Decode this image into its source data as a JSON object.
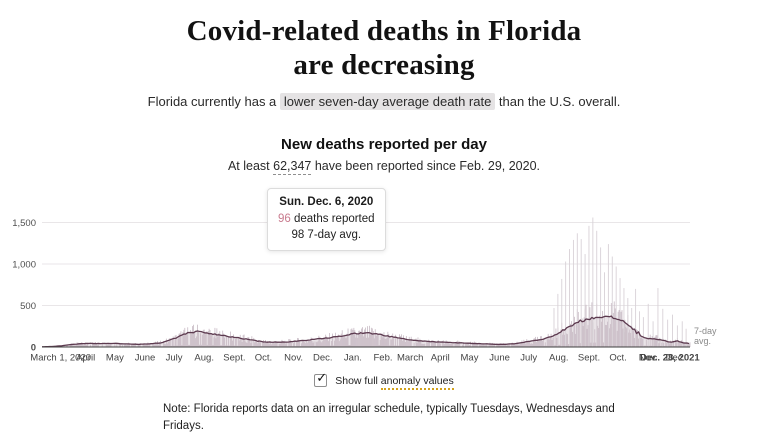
{
  "header": {
    "title_line1": "Covid-related deaths in Florida",
    "title_line2": "are decreasing",
    "subtitle_prefix": "Florida currently has a ",
    "subtitle_highlight": "lower seven-day average death rate",
    "subtitle_suffix": " than the U.S. overall."
  },
  "chart_header": {
    "title": "New deaths reported per day",
    "stat_prefix": "At least ",
    "stat_value": "62,347",
    "stat_suffix": " have been reported since Feb. 29, 2020."
  },
  "tooltip": {
    "date": "Sun. Dec. 6, 2020",
    "deaths_value": "96",
    "deaths_suffix": " deaths reported",
    "avg_text": "98 7-day avg.",
    "accent_color": "#c97b8e"
  },
  "controls": {
    "label_prefix": "Show full ",
    "label_underlined": "anomaly values",
    "checked": true,
    "check_glyph": "✓"
  },
  "note_text": "Note: Florida reports data on an irregular schedule, typically Tuesdays, Wednesdays and Fridays.",
  "chart_data": {
    "type": "bar",
    "title": "New deaths reported per day",
    "x_range": [
      "March 1, 2020",
      "Dec. 28, 2021"
    ],
    "ylim": [
      0,
      1650
    ],
    "grid": true,
    "y_ticks": [
      {
        "v": 0,
        "label": "0",
        "bold": true
      },
      {
        "v": 500,
        "label": "500",
        "bold": false
      },
      {
        "v": 1000,
        "label": "1,000",
        "bold": false
      },
      {
        "v": 1500,
        "label": "1,500",
        "bold": false
      }
    ],
    "x_labels": [
      {
        "label": "March 1, 2020",
        "d": -12,
        "anchor": "start",
        "bold": false
      },
      {
        "label": "April",
        "d": 45
      },
      {
        "label": "May",
        "d": 75
      },
      {
        "label": "June",
        "d": 106
      },
      {
        "label": "July",
        "d": 136
      },
      {
        "label": "Aug.",
        "d": 167
      },
      {
        "label": "Sept.",
        "d": 198
      },
      {
        "label": "Oct.",
        "d": 228
      },
      {
        "label": "Nov.",
        "d": 259
      },
      {
        "label": "Dec.",
        "d": 289
      },
      {
        "label": "Jan.",
        "d": 320
      },
      {
        "label": "Feb.",
        "d": 351
      },
      {
        "label": "March",
        "d": 379
      },
      {
        "label": "April",
        "d": 410
      },
      {
        "label": "May",
        "d": 440
      },
      {
        "label": "June",
        "d": 471
      },
      {
        "label": "July",
        "d": 501
      },
      {
        "label": "Aug.",
        "d": 532
      },
      {
        "label": "Sept.",
        "d": 563
      },
      {
        "label": "Oct.",
        "d": 593
      },
      {
        "label": "Nov.",
        "d": 624
      },
      {
        "label": "Dec.",
        "d": 652
      },
      {
        "label": "Dec. 28, 2021",
        "d": 677,
        "anchor": "end",
        "bold": true
      }
    ],
    "line_label_lines": [
      "7-day",
      "avg."
    ],
    "avg_series": {
      "name": "7-day average deaths",
      "points": [
        [
          0,
          2
        ],
        [
          10,
          6
        ],
        [
          20,
          14
        ],
        [
          31,
          30
        ],
        [
          40,
          40
        ],
        [
          50,
          44
        ],
        [
          61,
          41
        ],
        [
          70,
          44
        ],
        [
          80,
          41
        ],
        [
          92,
          34
        ],
        [
          100,
          32
        ],
        [
          110,
          37
        ],
        [
          122,
          50
        ],
        [
          130,
          75
        ],
        [
          138,
          110
        ],
        [
          146,
          155
        ],
        [
          153,
          175
        ],
        [
          160,
          188
        ],
        [
          166,
          174
        ],
        [
          172,
          160
        ],
        [
          178,
          152
        ],
        [
          184,
          142
        ],
        [
          192,
          126
        ],
        [
          200,
          113
        ],
        [
          207,
          101
        ],
        [
          214,
          89
        ],
        [
          221,
          73
        ],
        [
          228,
          63
        ],
        [
          235,
          59
        ],
        [
          245,
          57
        ],
        [
          255,
          63
        ],
        [
          265,
          74
        ],
        [
          275,
          85
        ],
        [
          285,
          98
        ],
        [
          295,
          108
        ],
        [
          306,
          130
        ],
        [
          314,
          148
        ],
        [
          322,
          160
        ],
        [
          330,
          170
        ],
        [
          337,
          168
        ],
        [
          344,
          158
        ],
        [
          352,
          140
        ],
        [
          360,
          122
        ],
        [
          368,
          108
        ],
        [
          376,
          90
        ],
        [
          385,
          78
        ],
        [
          396,
          68
        ],
        [
          408,
          60
        ],
        [
          420,
          55
        ],
        [
          432,
          49
        ],
        [
          444,
          43
        ],
        [
          457,
          37
        ],
        [
          468,
          32
        ],
        [
          478,
          33
        ],
        [
          487,
          40
        ],
        [
          495,
          55
        ],
        [
          503,
          70
        ],
        [
          511,
          86
        ],
        [
          518,
          102
        ],
        [
          524,
          128
        ],
        [
          530,
          158
        ],
        [
          536,
          198
        ],
        [
          542,
          240
        ],
        [
          548,
          278
        ],
        [
          554,
          310
        ],
        [
          560,
          335
        ],
        [
          566,
          350
        ],
        [
          572,
          360
        ],
        [
          578,
          368
        ],
        [
          583,
          372
        ],
        [
          588,
          362
        ],
        [
          592,
          344
        ],
        [
          596,
          320
        ],
        [
          600,
          292
        ],
        [
          604,
          258
        ],
        [
          607,
          228
        ],
        [
          610,
          205
        ],
        [
          612,
          160
        ],
        [
          614,
          190
        ],
        [
          616,
          130
        ],
        [
          620,
          110
        ],
        [
          624,
          102
        ],
        [
          628,
          97
        ],
        [
          632,
          93
        ],
        [
          636,
          88
        ],
        [
          640,
          78
        ],
        [
          644,
          65
        ],
        [
          648,
          60
        ],
        [
          651,
          68
        ],
        [
          654,
          74
        ],
        [
          657,
          62
        ],
        [
          660,
          52
        ],
        [
          663,
          47
        ],
        [
          667,
          42
        ]
      ]
    },
    "anomaly_spikes": [
      [
        527,
        470
      ],
      [
        531,
        640
      ],
      [
        535,
        820
      ],
      [
        539,
        1030
      ],
      [
        543,
        1180
      ],
      [
        547,
        1290
      ],
      [
        551,
        1370
      ],
      [
        555,
        1300
      ],
      [
        559,
        1120
      ],
      [
        563,
        1460
      ],
      [
        567,
        1560
      ],
      [
        571,
        1400
      ],
      [
        575,
        1200
      ],
      [
        579,
        900
      ],
      [
        583,
        1240
      ],
      [
        587,
        1090
      ],
      [
        591,
        970
      ],
      [
        595,
        830
      ],
      [
        599,
        710
      ],
      [
        603,
        590
      ],
      [
        607,
        470
      ],
      [
        611,
        700
      ],
      [
        615,
        430
      ],
      [
        619,
        360
      ],
      [
        624,
        520
      ],
      [
        629,
        310
      ],
      [
        634,
        710
      ],
      [
        639,
        460
      ],
      [
        644,
        330
      ],
      [
        649,
        390
      ],
      [
        654,
        260
      ],
      [
        659,
        310
      ],
      [
        663,
        220
      ]
    ],
    "colors": {
      "bar": "#c8bac4",
      "anomaly_spike": "#d8d1d7",
      "avg_line": "#5c3a4f",
      "grid": "#e9e6e8",
      "axis_line": "#3f3f3f",
      "tick_text": "#4f4f4f",
      "annotation": "#8a8a8a",
      "area_fill": "rgba(200,186,196,0.40)"
    }
  }
}
